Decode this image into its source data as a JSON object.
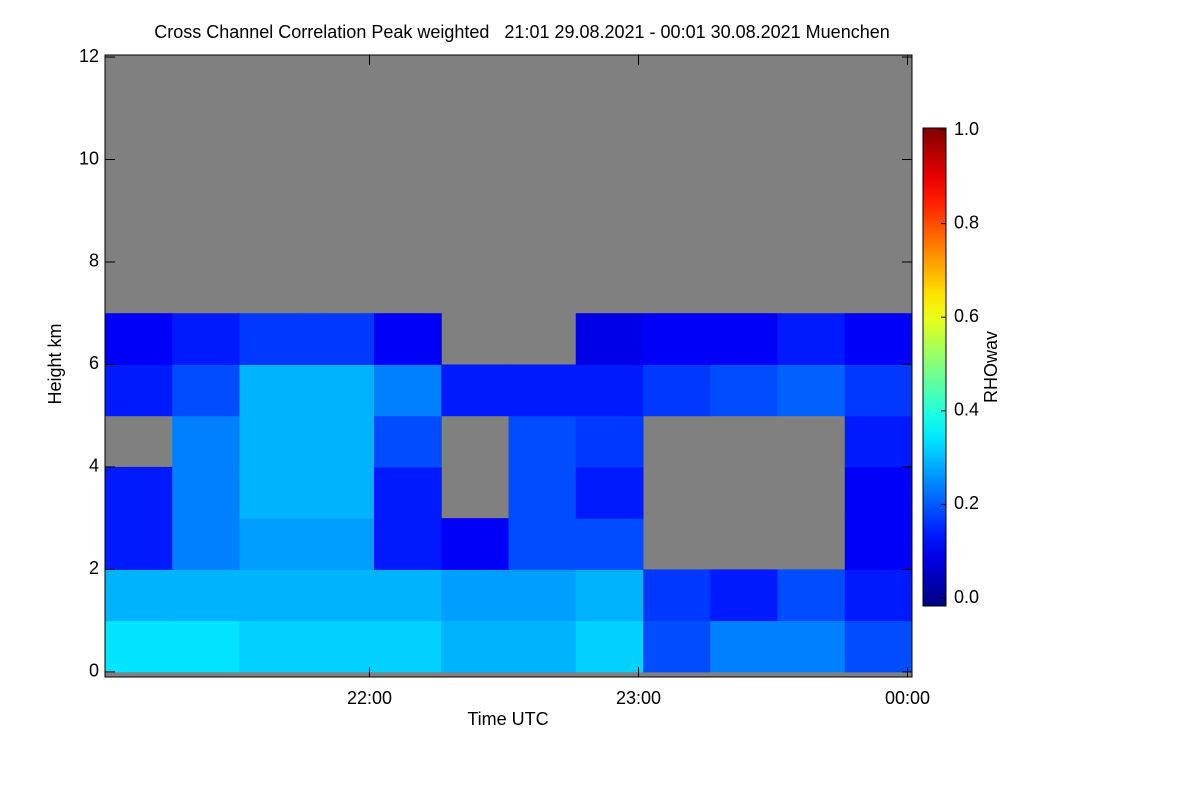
{
  "chart_data": {
    "type": "heatmap",
    "title": "Cross Channel Correlation Peak weighted   21:01 29.08.2021 - 00:01 30.08.2021 Muenchen",
    "xlabel": "Time UTC",
    "ylabel": "Height km",
    "xlim": [
      21.0167,
      24.0167
    ],
    "xticks": [
      {
        "value": 22,
        "label": "22:00"
      },
      {
        "value": 23,
        "label": "23:00"
      },
      {
        "value": 24,
        "label": "00:00"
      }
    ],
    "ylim": [
      -0.1,
      12.04
    ],
    "yticks": [
      0,
      2,
      4,
      6,
      8,
      10,
      12
    ],
    "xbins": [
      21.0167,
      21.2667,
      21.5167,
      21.7667,
      22.0167,
      22.2667,
      22.5167,
      22.7667,
      23.0167,
      23.2667,
      23.5167,
      23.7667,
      24.0167
    ],
    "ybins": [
      0,
      1,
      2,
      3,
      4,
      5,
      6,
      7,
      8,
      9,
      10,
      11,
      12
    ],
    "values": [
      [
        0.35,
        0.35,
        0.33,
        0.33,
        0.33,
        0.3,
        0.3,
        0.33,
        0.2,
        0.25,
        0.25,
        0.2
      ],
      [
        0.3,
        0.3,
        0.3,
        0.3,
        0.3,
        0.28,
        0.28,
        0.3,
        0.18,
        0.15,
        0.2,
        0.15
      ],
      [
        0.15,
        0.25,
        0.28,
        0.28,
        0.15,
        0.12,
        0.2,
        0.2,
        null,
        null,
        null,
        0.12
      ],
      [
        0.15,
        0.25,
        0.3,
        0.3,
        0.15,
        null,
        0.2,
        0.15,
        null,
        null,
        null,
        0.12
      ],
      [
        null,
        0.25,
        0.3,
        0.3,
        0.2,
        null,
        0.2,
        0.18,
        null,
        null,
        null,
        0.15
      ],
      [
        0.15,
        0.2,
        0.3,
        0.3,
        0.25,
        0.15,
        0.15,
        0.15,
        0.18,
        0.2,
        0.22,
        0.18
      ],
      [
        0.12,
        0.15,
        0.18,
        0.18,
        0.12,
        null,
        null,
        0.1,
        0.12,
        0.12,
        0.15,
        0.12
      ],
      [
        null,
        null,
        null,
        null,
        null,
        null,
        null,
        null,
        null,
        null,
        null,
        null
      ],
      [
        null,
        null,
        null,
        null,
        null,
        null,
        null,
        null,
        null,
        null,
        null,
        null
      ],
      [
        null,
        null,
        null,
        null,
        null,
        null,
        null,
        null,
        null,
        null,
        null,
        null
      ],
      [
        null,
        null,
        null,
        null,
        null,
        null,
        null,
        null,
        null,
        null,
        null,
        null
      ],
      [
        null,
        null,
        null,
        null,
        null,
        null,
        null,
        null,
        null,
        null,
        null,
        null
      ]
    ],
    "missing_color": "#808080",
    "colormap": "jet",
    "colorbar": {
      "label": "RHOwav",
      "lim": [
        0,
        1
      ],
      "ticks": [
        {
          "value": 0,
          "label": "0.0"
        },
        {
          "value": 0.2,
          "label": "0.2"
        },
        {
          "value": 0.4,
          "label": "0.4"
        },
        {
          "value": 0.6,
          "label": "0.6"
        },
        {
          "value": 0.8,
          "label": "0.8"
        },
        {
          "value": 1,
          "label": "1.0"
        }
      ]
    }
  }
}
